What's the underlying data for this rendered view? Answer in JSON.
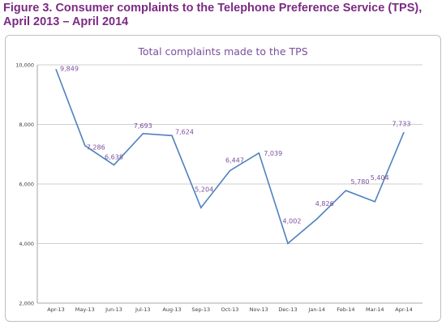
{
  "figure_title": "Figure 3. Consumer complaints to the Telephone Preference Service (TPS), April 2013 – April 2014",
  "colors": {
    "title": "#7b2a83",
    "line": "#4f81bd",
    "label": "#7b4f9d",
    "grid": "#bfbfbf"
  },
  "chart_data": {
    "type": "line",
    "title": "Total complaints made to the TPS",
    "xlabel": "",
    "ylabel": "",
    "categories": [
      "Apr-13",
      "May-13",
      "Jun-13",
      "Jul-13",
      "Aug-13",
      "Sep-13",
      "Oct-13",
      "Nov-13",
      "Dec-13",
      "Jan-14",
      "Feb-14",
      "Mar-14",
      "Apr-14"
    ],
    "values": [
      9849,
      7286,
      6638,
      7693,
      7624,
      5204,
      6447,
      7039,
      4002,
      4826,
      5780,
      5404,
      7733
    ],
    "data_labels": [
      "9,849",
      "7,286",
      "6,638",
      "7,693",
      "7,624",
      "5,204",
      "6,447",
      "7,039",
      "4,002",
      "4,826",
      "5,780",
      "5,404",
      "7,733"
    ],
    "ylim": [
      2000,
      10000
    ],
    "yticks": [
      2000,
      4000,
      6000,
      8000,
      10000
    ],
    "ytick_labels": [
      "2,000",
      "4,000",
      "6,000",
      "8,000",
      "10,000"
    ],
    "grid": true,
    "legend": "none"
  }
}
